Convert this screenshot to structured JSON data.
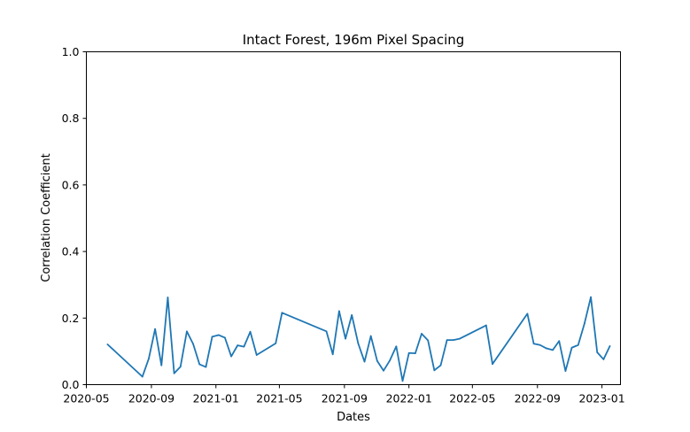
{
  "chart_data": {
    "type": "line",
    "title": "Intact Forest, 196m Pixel Spacing",
    "xlabel": "Dates",
    "ylabel": "Correlation Coefficient",
    "xlim": [
      "2020-05-01",
      "2023-02-05"
    ],
    "ylim": [
      0,
      1
    ],
    "x_ticks": [
      "2020-05",
      "2020-09",
      "2021-01",
      "2021-05",
      "2021-09",
      "2022-01",
      "2022-05",
      "2022-09",
      "2023-01"
    ],
    "y_ticks": [
      "0.0",
      "0.2",
      "0.4",
      "0.6",
      "0.8",
      "1.0"
    ],
    "grid": false,
    "line_color": "#1f77b4",
    "series": [
      {
        "x": [
          "2020-06-10",
          "2020-08-15",
          "2020-08-27",
          "2020-09-08",
          "2020-09-20",
          "2020-10-02",
          "2020-10-14",
          "2020-10-26",
          "2020-11-07",
          "2020-11-19",
          "2020-12-01",
          "2020-12-13",
          "2020-12-25",
          "2021-01-06",
          "2021-01-18",
          "2021-01-30",
          "2021-02-11",
          "2021-02-23",
          "2021-03-07",
          "2021-03-19",
          "2021-04-24",
          "2021-05-06",
          "2021-07-29",
          "2021-08-10",
          "2021-08-22",
          "2021-09-03",
          "2021-09-15",
          "2021-09-27",
          "2021-10-09",
          "2021-10-21",
          "2021-11-02",
          "2021-11-14",
          "2021-11-26",
          "2021-12-08",
          "2021-12-20",
          "2022-01-01",
          "2022-01-13",
          "2022-01-25",
          "2022-02-06",
          "2022-02-18",
          "2022-03-02",
          "2022-03-14",
          "2022-03-26",
          "2022-04-07",
          "2022-05-27",
          "2022-06-08",
          "2022-08-13",
          "2022-08-25",
          "2022-09-06",
          "2022-09-18",
          "2022-09-30",
          "2022-10-12",
          "2022-10-24",
          "2022-11-05",
          "2022-11-17",
          "2022-11-29",
          "2022-12-11",
          "2022-12-23",
          "2023-01-04",
          "2023-01-16"
        ],
        "y": [
          0.121,
          0.024,
          0.078,
          0.167,
          0.058,
          0.262,
          0.034,
          0.054,
          0.16,
          0.122,
          0.061,
          0.053,
          0.144,
          0.149,
          0.141,
          0.085,
          0.118,
          0.114,
          0.159,
          0.089,
          0.124,
          0.216,
          0.16,
          0.091,
          0.221,
          0.138,
          0.209,
          0.124,
          0.069,
          0.146,
          0.071,
          0.042,
          0.073,
          0.115,
          0.011,
          0.095,
          0.094,
          0.153,
          0.133,
          0.043,
          0.058,
          0.134,
          0.134,
          0.138,
          0.178,
          0.062,
          0.213,
          0.123,
          0.119,
          0.109,
          0.104,
          0.131,
          0.041,
          0.111,
          0.119,
          0.184,
          0.263,
          0.097,
          0.076,
          0.116
        ]
      }
    ]
  }
}
